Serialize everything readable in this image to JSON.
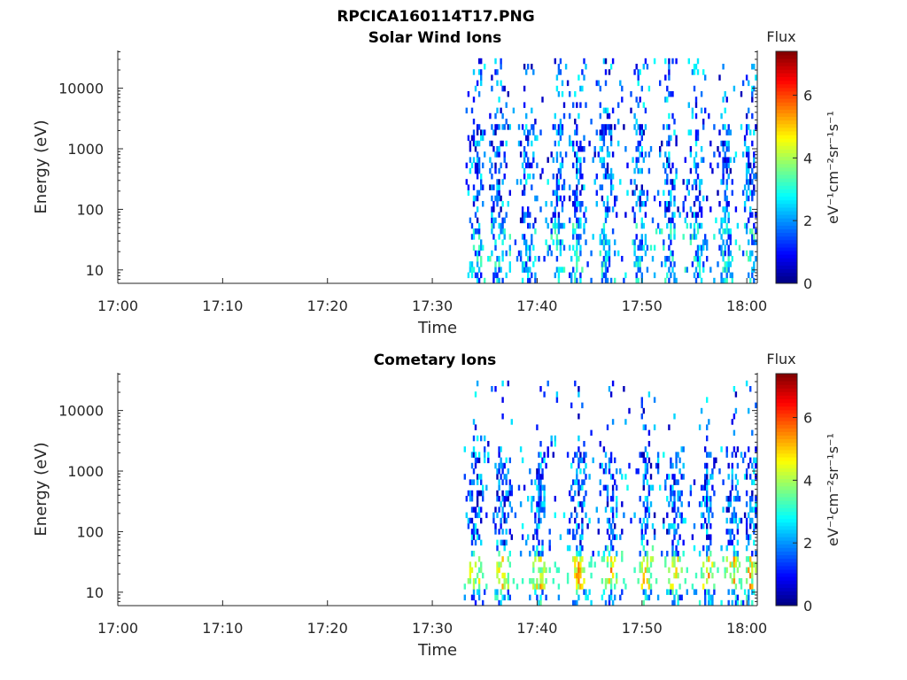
{
  "figure": {
    "title": "RPCICA160114T17.PNG"
  },
  "colorbar": {
    "title": "Flux",
    "unit_label": "eV⁻¹cm⁻²sr⁻¹s⁻¹",
    "ticks": [
      "0",
      "2",
      "4",
      "6"
    ],
    "range": [
      0,
      7.4
    ],
    "colormap": "jet"
  },
  "chart_data": [
    {
      "type": "heatmap",
      "title": "Solar Wind Ions",
      "xlabel": "Time",
      "ylabel": "Energy (eV)",
      "x_ticks": [
        "17:00",
        "17:10",
        "17:20",
        "17:30",
        "17:40",
        "17:50",
        "18:00"
      ],
      "x_range_minutes": [
        0,
        61
      ],
      "y_ticks": [
        "10",
        "100",
        "1000",
        "10000"
      ],
      "y_range": [
        6,
        42000
      ],
      "y_scale": "log",
      "data_start": "17:33",
      "active_columns_minutes": [
        34.1,
        36.2,
        39.0,
        41.9,
        43.8,
        46.5,
        49.7,
        52.6,
        55.2,
        57.9,
        60.2
      ],
      "flux_range": [
        0,
        4.5
      ],
      "note": "sparse pixels across 10-30000 eV from 17:33 onward"
    },
    {
      "type": "heatmap",
      "title": "Cometary Ions",
      "xlabel": "Time",
      "ylabel": "Energy (eV)",
      "x_ticks": [
        "17:00",
        "17:10",
        "17:20",
        "17:30",
        "17:40",
        "17:50",
        "18:00"
      ],
      "x_range_minutes": [
        0,
        61
      ],
      "y_ticks": [
        "10",
        "100",
        "1000",
        "10000"
      ],
      "y_range": [
        6,
        42000
      ],
      "y_scale": "log",
      "data_start": "17:33",
      "active_columns_minutes": [
        34.0,
        36.6,
        40.1,
        43.9,
        47.0,
        50.3,
        53.0,
        56.2,
        58.6,
        60.3
      ],
      "hotspot_band_eV": [
        12,
        40
      ],
      "hotspot_flux_max": 6.0,
      "flux_range": [
        0,
        6
      ]
    }
  ]
}
